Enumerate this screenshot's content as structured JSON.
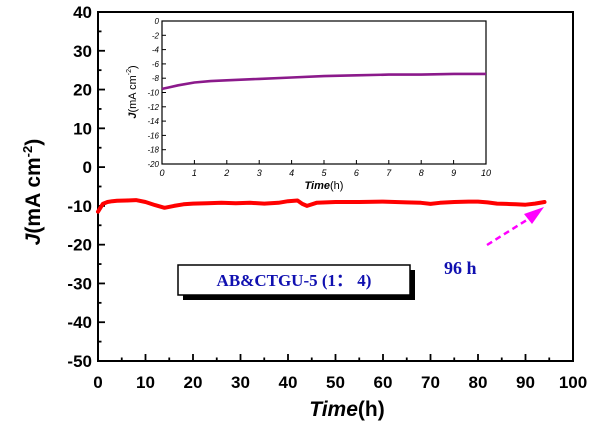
{
  "colors": {
    "main_series": "#ff0000",
    "inset_series": "#8b1a8b",
    "annotation_text": "#1010b0",
    "arrow": "#ff00ff",
    "label_text": "#1010b0"
  },
  "chart_data": [
    {
      "type": "line",
      "xlabel": "Time(h)",
      "ylabel": "J(mA cm-2)",
      "xlim": [
        0,
        100
      ],
      "ylim": [
        -50,
        40
      ],
      "x_ticks": [
        "0",
        "10",
        "20",
        "30",
        "40",
        "50",
        "60",
        "70",
        "80",
        "90",
        "100"
      ],
      "y_ticks": [
        "40",
        "30",
        "20",
        "10",
        "0",
        "-10",
        "-20",
        "-30",
        "-40",
        "-50"
      ],
      "series": [
        {
          "name": "AB&CTGU-5 (1: 4)",
          "x": [
            0,
            0.5,
            1,
            2,
            3,
            4,
            6,
            8,
            10,
            12,
            14,
            16,
            18,
            20,
            23,
            26,
            29,
            32,
            35,
            38,
            40,
            42,
            43,
            44,
            46,
            50,
            55,
            60,
            65,
            68,
            70,
            72,
            75,
            78,
            80,
            82,
            84,
            86,
            88,
            90,
            92,
            94
          ],
          "values": [
            -11.5,
            -10.5,
            -9.5,
            -9.0,
            -8.8,
            -8.7,
            -8.6,
            -8.5,
            -9.0,
            -9.8,
            -10.5,
            -10.0,
            -9.6,
            -9.4,
            -9.3,
            -9.2,
            -9.3,
            -9.2,
            -9.4,
            -9.2,
            -8.8,
            -8.6,
            -9.5,
            -10.0,
            -9.2,
            -9.0,
            -9.0,
            -8.9,
            -9.1,
            -9.2,
            -9.5,
            -9.2,
            -9.0,
            -8.9,
            -8.9,
            -9.1,
            -9.4,
            -9.5,
            -9.6,
            -9.7,
            -9.4,
            -9.0
          ]
        }
      ]
    },
    {
      "type": "line",
      "role": "inset",
      "xlabel": "Time(h)",
      "ylabel": "J(mA cm-2)",
      "xlim": [
        0,
        10
      ],
      "ylim": [
        -20,
        0
      ],
      "x_ticks": [
        "0",
        "1",
        "2",
        "3",
        "4",
        "5",
        "6",
        "7",
        "8",
        "9",
        "10"
      ],
      "y_ticks": [
        "0",
        "-2",
        "-4",
        "-6",
        "-8",
        "-10",
        "-12",
        "-14",
        "-16",
        "-18",
        "-20"
      ],
      "series": [
        {
          "name": "AB&CTGU-5 (1: 4)",
          "x": [
            0,
            0.2,
            0.5,
            1,
            1.5,
            2,
            3,
            4,
            5,
            6,
            7,
            8,
            9,
            10
          ],
          "values": [
            -9.5,
            -9.3,
            -9.0,
            -8.6,
            -8.4,
            -8.3,
            -8.1,
            -7.9,
            -7.7,
            -7.6,
            -7.5,
            -7.5,
            -7.4,
            -7.4
          ]
        }
      ]
    }
  ],
  "annotations": {
    "sample_label": "AB&CTGU-5 (1： 4)",
    "duration_label": "96 h"
  }
}
